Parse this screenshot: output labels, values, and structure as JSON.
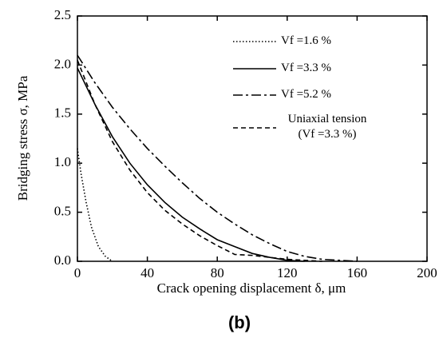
{
  "chart_data": {
    "type": "line",
    "xlabel": "Crack opening displacement δ, μm",
    "ylabel": "Bridging stress σ, MPa",
    "panel_label": "(b)",
    "xlim": [
      0,
      200
    ],
    "xticks": [
      0,
      40,
      80,
      120,
      160,
      200
    ],
    "ylim": [
      0,
      2.5
    ],
    "yticks": [
      {
        "value": 0,
        "label": "0.0"
      },
      {
        "value": 0.5,
        "label": "0.5"
      },
      {
        "value": 1,
        "label": "1.0"
      },
      {
        "value": 1.5,
        "label": "1.5"
      },
      {
        "value": 2,
        "label": "2.0"
      },
      {
        "value": 2.5,
        "label": "2.5"
      }
    ],
    "series": [
      {
        "name": "Vf =1.6 %",
        "color": "#000000",
        "style": "dotted",
        "x": [
          0,
          2,
          5,
          8,
          12,
          16,
          20
        ],
        "values": [
          1.15,
          0.9,
          0.6,
          0.35,
          0.15,
          0.05,
          0
        ]
      },
      {
        "name": "Vf =3.3 %",
        "color": "#000000",
        "style": "solid",
        "x": [
          0,
          10,
          20,
          30,
          40,
          50,
          60,
          70,
          80,
          90,
          100,
          110,
          120,
          130
        ],
        "values": [
          1.97,
          1.6,
          1.27,
          1.0,
          0.78,
          0.6,
          0.45,
          0.33,
          0.22,
          0.15,
          0.08,
          0.04,
          0.01,
          0
        ]
      },
      {
        "name": "Vf =5.2 %",
        "color": "#000000",
        "style": "dashdot",
        "x": [
          0,
          10,
          20,
          30,
          40,
          50,
          60,
          70,
          80,
          90,
          100,
          110,
          120,
          130,
          140,
          160
        ],
        "values": [
          2.1,
          1.82,
          1.57,
          1.35,
          1.15,
          0.97,
          0.8,
          0.64,
          0.5,
          0.38,
          0.27,
          0.18,
          0.1,
          0.05,
          0.02,
          0
        ]
      },
      {
        "name": "Uniaxial tension (Vf =3.3 %)",
        "color": "#000000",
        "style": "dashed",
        "x": [
          0,
          10,
          20,
          30,
          40,
          50,
          60,
          70,
          80,
          90,
          100,
          110,
          120,
          130,
          140
        ],
        "values": [
          2.05,
          1.6,
          1.22,
          0.93,
          0.7,
          0.52,
          0.38,
          0.26,
          0.16,
          0.07,
          0.06,
          0.04,
          0.02,
          0.01,
          0
        ]
      }
    ]
  }
}
